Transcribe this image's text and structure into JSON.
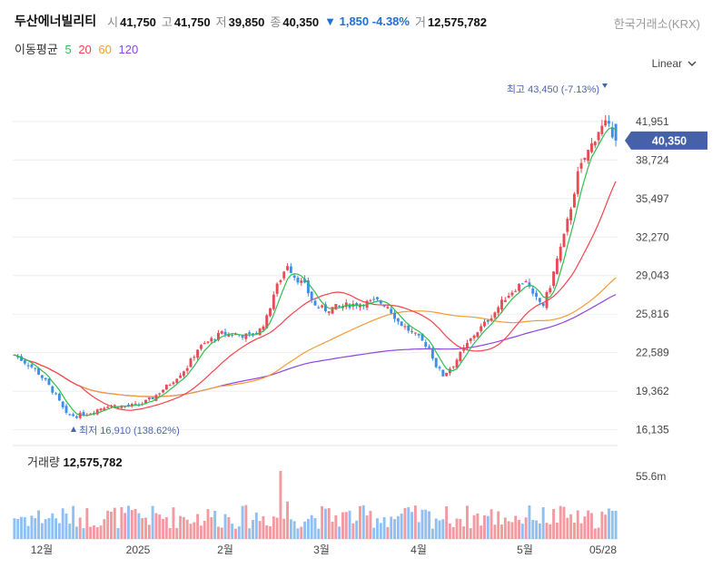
{
  "stock": {
    "name": "두산에너빌리티",
    "open_label": "시",
    "open": "41,750",
    "high_label": "고",
    "high": "41,750",
    "low_label": "저",
    "low": "39,850",
    "close_label": "종",
    "close": "40,350",
    "change": "1,850",
    "change_pct": "-4.38%",
    "volume_label": "거",
    "volume": "12,575,782",
    "exchange": "한국거래소(KRX)"
  },
  "ma_legend": {
    "title": "이동평균",
    "items": [
      {
        "label": "5",
        "color": "#2ebd4e"
      },
      {
        "label": "20",
        "color": "#f2444a"
      },
      {
        "label": "60",
        "color": "#f39c34"
      },
      {
        "label": "120",
        "color": "#8e44e0"
      }
    ]
  },
  "scale_selector": "Linear",
  "colors": {
    "up": "#e84a57",
    "down": "#3d8ee8",
    "up_vol": "#f29aa0",
    "down_vol": "#8fc0f3",
    "badge": "#4561a8"
  },
  "chart_data": {
    "type": "candlestick",
    "y_ticks": [
      16135,
      19362,
      22589,
      25816,
      29043,
      32270,
      35497,
      38724,
      41951
    ],
    "y_tick_labels": [
      "16,135",
      "19,362",
      "22,589",
      "25,816",
      "29,043",
      "32,270",
      "35,497",
      "38,724",
      "41,951"
    ],
    "ylim": [
      15500,
      44900
    ],
    "x_tick_labels": [
      "12월",
      "2025",
      "2월",
      "3월",
      "4월",
      "5월",
      "05/28"
    ],
    "last_price": 40350,
    "last_price_label": "40,350",
    "high_annotation": "최고 43,450 (-7.13%)",
    "low_annotation": "최저 16,910 (138.62%)",
    "volume_title": "거래량",
    "volume_value": "12,575,782",
    "volume_tick": "55.6m"
  }
}
